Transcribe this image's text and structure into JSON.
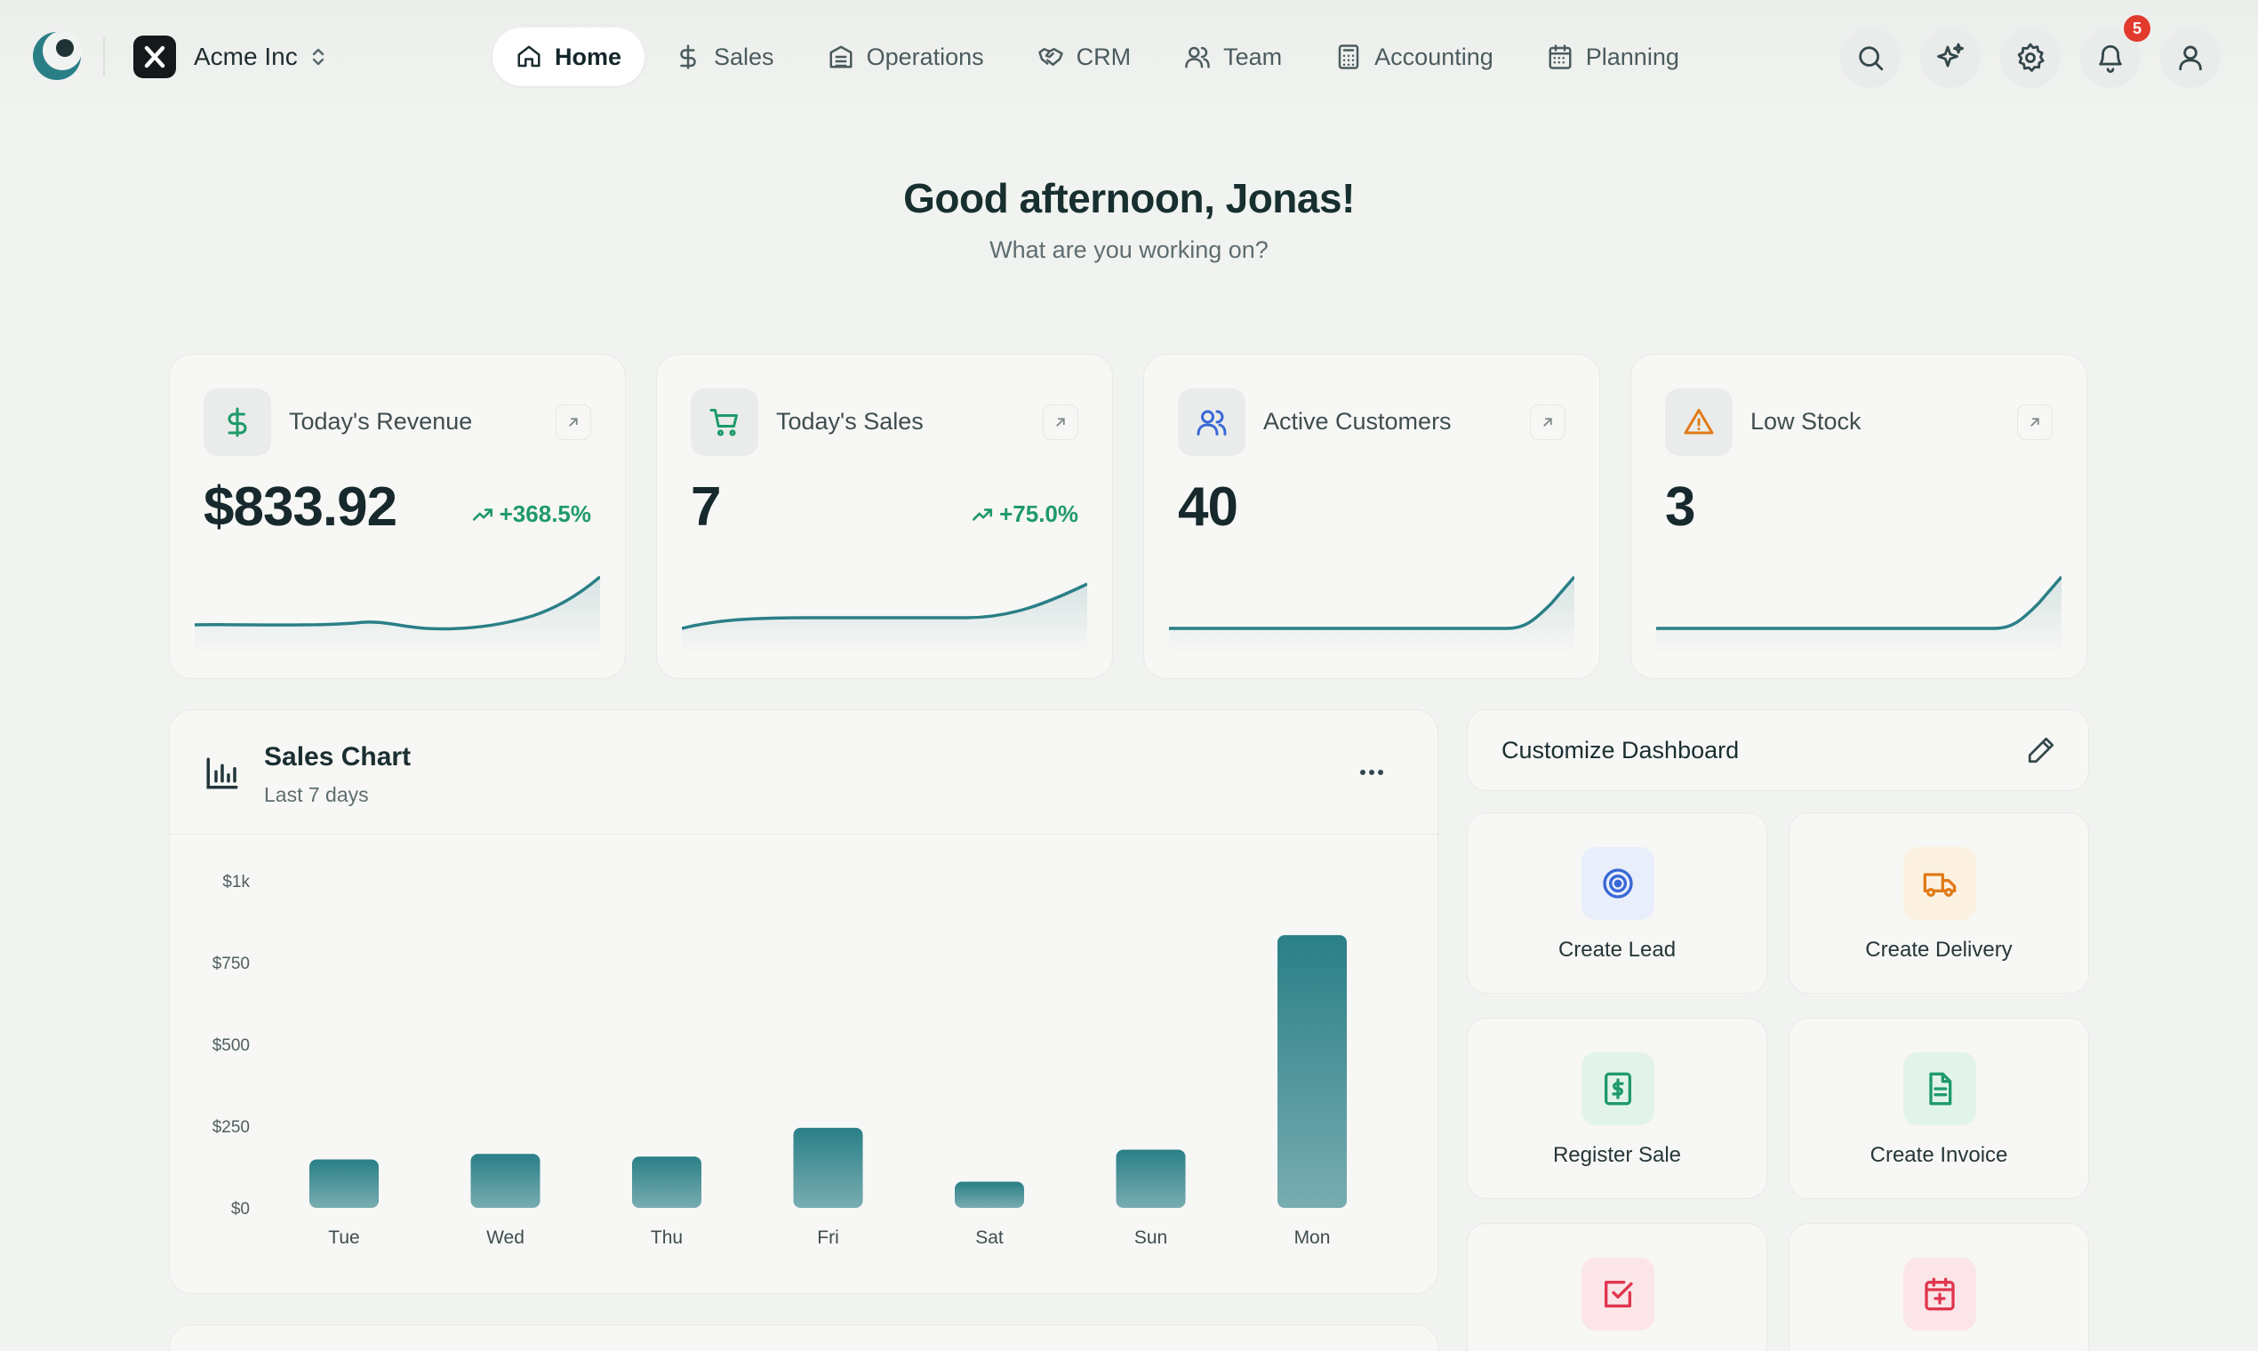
{
  "header": {
    "org_name": "Acme Inc",
    "nav": [
      {
        "label": "Home",
        "icon": "home-icon",
        "active": true
      },
      {
        "label": "Sales",
        "icon": "dollar-icon"
      },
      {
        "label": "Operations",
        "icon": "building-icon"
      },
      {
        "label": "CRM",
        "icon": "handshake-icon"
      },
      {
        "label": "Team",
        "icon": "users-icon"
      },
      {
        "label": "Accounting",
        "icon": "calculator-icon"
      },
      {
        "label": "Planning",
        "icon": "calendar-icon"
      }
    ],
    "notifications_count": "5"
  },
  "greeting": {
    "title": "Good afternoon, Jonas!",
    "subtitle": "What are you working on?"
  },
  "kpis": [
    {
      "title": "Today's Revenue",
      "value": "$833.92",
      "trend": "+368.5%",
      "icon": "dollar-icon",
      "icon_color": "#1f9a6a"
    },
    {
      "title": "Today's Sales",
      "value": "7",
      "trend": "+75.0%",
      "icon": "cart-icon",
      "icon_color": "#1f9a6a"
    },
    {
      "title": "Active Customers",
      "value": "40",
      "trend": "",
      "icon": "users-icon",
      "icon_color": "#3867d6"
    },
    {
      "title": "Low Stock",
      "value": "3",
      "trend": "",
      "icon": "alert-triangle-icon",
      "icon_color": "#e07b1a"
    }
  ],
  "sales_chart": {
    "title": "Sales Chart",
    "subtitle": "Last 7 days"
  },
  "chart_data": {
    "type": "bar",
    "categories": [
      "Tue",
      "Wed",
      "Thu",
      "Fri",
      "Sat",
      "Sun",
      "Mon"
    ],
    "values": [
      148,
      165,
      157,
      245,
      80,
      178,
      833.92
    ],
    "yticks": [
      "$0",
      "$250",
      "$500",
      "$750",
      "$1k"
    ],
    "ylim": [
      0,
      1000
    ],
    "color": "#2a7f87"
  },
  "customize": {
    "title": "Customize Dashboard"
  },
  "actions": [
    {
      "label": "Create Lead",
      "icon": "target-icon",
      "color": "#3867d6",
      "bg": "#e8eefa"
    },
    {
      "label": "Create Delivery",
      "icon": "truck-icon",
      "color": "#e07b1a",
      "bg": "#fdf2e1"
    },
    {
      "label": "Register Sale",
      "icon": "receipt-dollar-icon",
      "color": "#1f9a6a",
      "bg": "#e1f3ea"
    },
    {
      "label": "Create Invoice",
      "icon": "document-icon",
      "color": "#1f9a6a",
      "bg": "#e1f3ea"
    },
    {
      "label": "",
      "icon": "checkbox-icon",
      "color": "#e0364f",
      "bg": "#fbe5e8"
    },
    {
      "label": "",
      "icon": "calendar-plus-icon",
      "color": "#e0364f",
      "bg": "#fbe5e8"
    }
  ],
  "colors": {
    "accent": "#2a7f87",
    "positive": "#1f9a6a",
    "badge": "#e23b2e"
  }
}
